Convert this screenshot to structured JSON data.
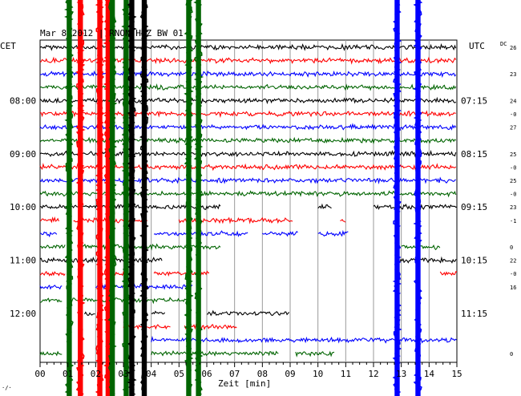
{
  "chart_data": {
    "type": "line",
    "title": "Mar 8 2012 | RNON HHZ BW 01",
    "left_label": "CET",
    "right_label": "UTC",
    "dc_label": "DC",
    "xlabel": "Zeit [min]",
    "xlim": [
      0,
      15
    ],
    "x_ticks": [
      "00",
      "01",
      "02",
      "03",
      "04",
      "05",
      "06",
      "07",
      "08",
      "09",
      "10",
      "11",
      "12",
      "13",
      "14",
      "15"
    ],
    "cet_hours": [
      "08:00",
      "09:00",
      "10:00",
      "11:00",
      "12:00"
    ],
    "utc_times": [
      "07:15",
      "08:15",
      "09:15",
      "10:15",
      "11:15"
    ],
    "grid": true,
    "row_count": 24,
    "trace_colors": [
      "#000000",
      "#ff0000",
      "#0000ff",
      "#006400"
    ],
    "dc_offsets": [
      "26",
      "23",
      "24",
      "-0",
      "27",
      "25",
      "-0",
      "25",
      "-0",
      "23",
      "-1",
      "0",
      "22",
      "-0",
      "16",
      "0"
    ],
    "corner_mark": "·/·",
    "event_bursts": [
      {
        "minute": 1.05,
        "color": "#006400"
      },
      {
        "minute": 1.45,
        "color": "#ff0000"
      },
      {
        "minute": 2.15,
        "color": "#ff0000"
      },
      {
        "minute": 2.45,
        "color": "#ff0000"
      },
      {
        "minute": 2.6,
        "color": "#006400"
      },
      {
        "minute": 3.1,
        "color": "#006400"
      },
      {
        "minute": 3.3,
        "color": "#000000"
      },
      {
        "minute": 3.75,
        "color": "#000000"
      },
      {
        "minute": 5.35,
        "color": "#006400"
      },
      {
        "minute": 5.7,
        "color": "#006400"
      },
      {
        "minute": 12.85,
        "color": "#0000ff"
      },
      {
        "minute": 13.6,
        "color": "#0000ff"
      }
    ]
  }
}
